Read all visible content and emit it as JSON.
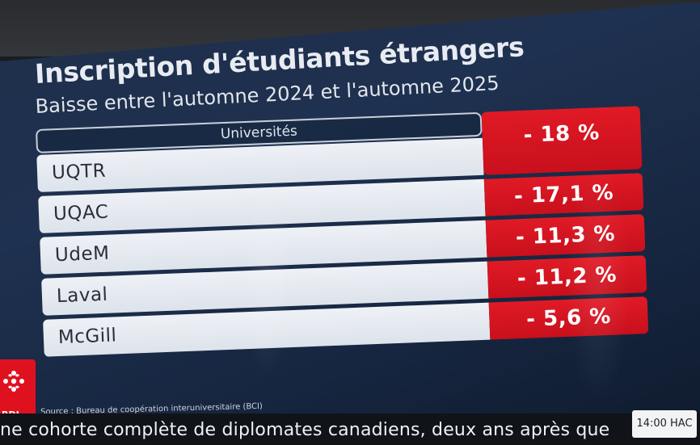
{
  "title": "Inscription d'étudiants étrangers",
  "subtitle": "Baisse entre l'automne 2024 et l'automne 2025",
  "table": {
    "header": "Universités",
    "rows": [
      {
        "name": "UQTR",
        "value": "- 18 %"
      },
      {
        "name": "UQAC",
        "value": "- 17,1 %"
      },
      {
        "name": "UdeM",
        "value": "- 11,3 %"
      },
      {
        "name": "Laval",
        "value": "- 11,2 %"
      },
      {
        "name": "McGill",
        "value": "- 5,6 %"
      }
    ]
  },
  "source": "Source : Bureau de coopération interuniversitaire (BCI)",
  "logo": {
    "text": "RDI",
    "icon": "radio-canada-gem-icon"
  },
  "ticker": {
    "text": "ne cohorte complète de diplomates canadiens, deux ans après que",
    "clock": "14:00 HAC"
  },
  "colors": {
    "background": "#1f3150",
    "value_cell": "#e01a26",
    "name_cell": "#eef1f6",
    "logo": "#e0111f"
  }
}
